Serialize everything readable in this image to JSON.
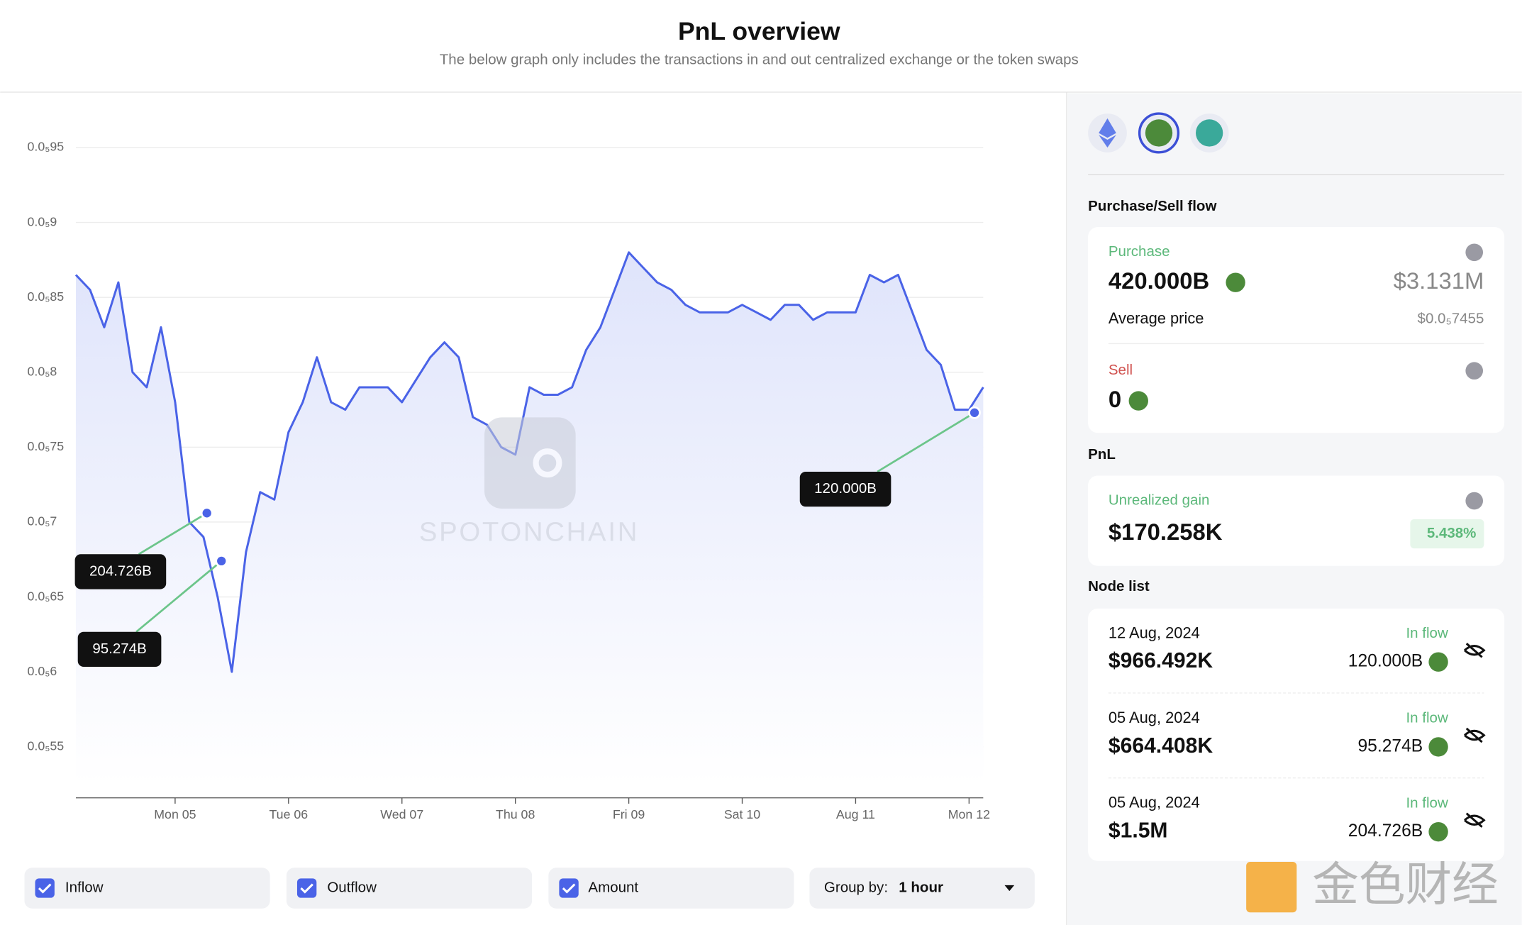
{
  "header": {
    "title": "PnL overview",
    "subtitle": "The below graph only includes the transactions in and out centralized exchange or the token swaps"
  },
  "chart_data": {
    "type": "line",
    "color": "#4a63e7",
    "grid": true,
    "watermark": "SPOTONCHAIN",
    "categories": [
      null,
      null,
      null,
      null,
      null,
      null,
      null,
      "Mon 05",
      null,
      null,
      null,
      null,
      null,
      null,
      null,
      "Tue 06",
      null,
      null,
      null,
      null,
      null,
      null,
      null,
      "Wed 07",
      null,
      null,
      null,
      null,
      null,
      null,
      null,
      "Thu 08",
      null,
      null,
      null,
      null,
      null,
      null,
      null,
      "Fri 09",
      null,
      null,
      null,
      null,
      null,
      null,
      null,
      "Sat 10",
      null,
      null,
      null,
      null,
      null,
      null,
      null,
      "Aug 11",
      null,
      null,
      null,
      null,
      null,
      null,
      null,
      "Mon 12",
      null
    ],
    "values": [
      8.65e-06,
      8.55e-06,
      8.3e-06,
      8.6e-06,
      8e-06,
      7.9e-06,
      8.3e-06,
      7.8e-06,
      7e-06,
      6.9e-06,
      6.5e-06,
      6e-06,
      6.8e-06,
      7.2e-06,
      7.15e-06,
      7.6e-06,
      7.8e-06,
      8.1e-06,
      7.8e-06,
      7.75e-06,
      7.9e-06,
      7.9e-06,
      7.9e-06,
      7.8e-06,
      7.95e-06,
      8.1e-06,
      8.2e-06,
      8.1e-06,
      7.7e-06,
      7.65e-06,
      7.5e-06,
      7.45e-06,
      7.9e-06,
      7.85e-06,
      7.85e-06,
      7.9e-06,
      8.15e-06,
      8.3e-06,
      8.55e-06,
      8.8e-06,
      8.7e-06,
      8.6e-06,
      8.55e-06,
      8.45e-06,
      8.4e-06,
      8.4e-06,
      8.4e-06,
      8.45e-06,
      8.4e-06,
      8.35e-06,
      8.45e-06,
      8.45e-06,
      8.35e-06,
      8.4e-06,
      8.4e-06,
      8.4e-06,
      8.65e-06,
      8.6e-06,
      8.65e-06,
      8.4e-06,
      8.15e-06,
      8.05e-06,
      7.75e-06,
      7.75e-06,
      7.9e-06
    ],
    "ylim": [
      5.25e-06,
      9.5e-06
    ],
    "yticks": [
      {
        "value": 5.5e-06,
        "label": "0.0₅55"
      },
      {
        "value": 6e-06,
        "label": "0.0₅6"
      },
      {
        "value": 6.5e-06,
        "label": "0.0₅65"
      },
      {
        "value": 7e-06,
        "label": "0.0₅7"
      },
      {
        "value": 7.5e-06,
        "label": "0.0₅75"
      },
      {
        "value": 8e-06,
        "label": "0.0₅8"
      },
      {
        "value": 8.5e-06,
        "label": "0.0₅85"
      },
      {
        "value": 9e-06,
        "label": "0.0₅9"
      },
      {
        "value": 9.5e-06,
        "label": "0.0₅95"
      }
    ],
    "annotations": [
      {
        "label": "204.726B",
        "value": 7.06e-06
      },
      {
        "label": "95.274B",
        "value": 6.74e-06
      },
      {
        "label": "120.000B",
        "value": 7.73e-06
      }
    ]
  },
  "controls": {
    "checkboxes": [
      "Inflow",
      "Outflow",
      "Amount"
    ],
    "group_by_label": "Group by:",
    "group_by_value": "1 hour"
  },
  "panel": {
    "flow_title": "Purchase/Sell flow",
    "purchase": {
      "label": "Purchase",
      "amount": "420.000B",
      "usd": "$3.131M",
      "avg_label": "Average price",
      "avg_price": "$0.0₅7455"
    },
    "sell": {
      "label": "Sell",
      "amount": "0"
    },
    "pnl_title": "PnL",
    "pnl": {
      "label": "Unrealized gain",
      "value": "$170.258K",
      "percent": "5.438%"
    },
    "node_list_title": "Node list",
    "nodes": [
      {
        "date": "12 Aug, 2024",
        "usd": "$966.492K",
        "flow": "In flow",
        "amount": "120.000B"
      },
      {
        "date": "05 Aug, 2024",
        "usd": "$664.408K",
        "flow": "In flow",
        "amount": "95.274B"
      },
      {
        "date": "05 Aug, 2024",
        "usd": "$1.5M",
        "flow": "In flow",
        "amount": "204.726B"
      }
    ]
  },
  "footer_logo": "金色财经"
}
